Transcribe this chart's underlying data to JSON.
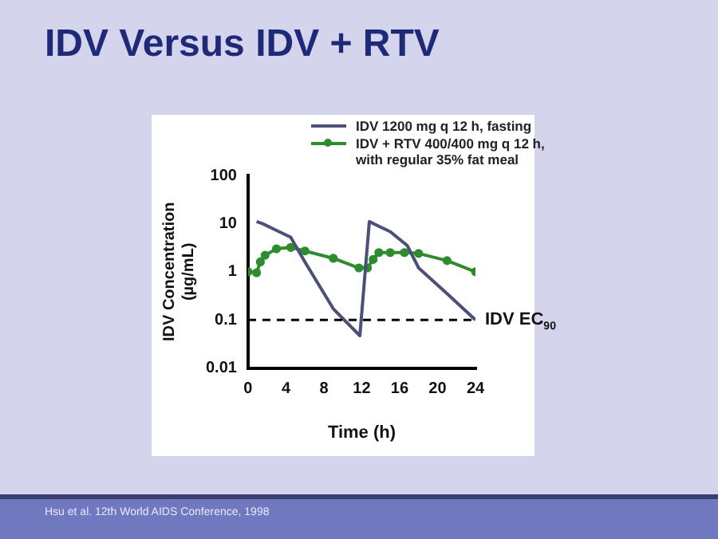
{
  "chart_data": {
    "type": "line",
    "title": "IDV Versus IDV + RTV",
    "xlabel": "Time (h)",
    "ylabel": "IDV Concentration\n(µg/mL)",
    "series": [
      {
        "name": "IDV 1200 mg q 12 h, fasting",
        "color": "#4a5078",
        "marker": "none",
        "x": [
          0.9,
          1.5,
          2.7,
          4.5,
          6,
          9,
          11.8,
          12.8,
          13.8,
          15,
          16.8,
          18,
          21,
          24
        ],
        "values": [
          11,
          10,
          7.7,
          5.2,
          1.6,
          0.17,
          0.047,
          11,
          8.8,
          6.8,
          3.5,
          1.2,
          0.35,
          0.1
        ]
      },
      {
        "name": "IDV + RTV 400/400 mg q 12 h,\nwith regular 35% fat meal",
        "color": "#2e8b2e",
        "marker": "circle",
        "x": [
          0,
          0.9,
          1.3,
          1.8,
          3,
          4.5,
          6,
          9,
          11.7,
          12.6,
          13.2,
          13.8,
          15,
          16.5,
          18,
          21,
          24
        ],
        "values": [
          1,
          0.95,
          1.6,
          2.2,
          3,
          3.2,
          2.7,
          1.9,
          1.2,
          1.2,
          1.8,
          2.5,
          2.5,
          2.5,
          2.4,
          1.7,
          1
        ]
      }
    ],
    "xlim": [
      0,
      24
    ],
    "xticks": [
      0,
      4,
      8,
      12,
      16,
      20,
      24
    ],
    "ylim": [
      0.01,
      100
    ],
    "yticks": [
      0.01,
      0.1,
      1,
      10,
      100
    ],
    "log": true,
    "grid": false,
    "legend": "top",
    "ref_lines": [
      {
        "axis": "y",
        "value": 0.1,
        "label": "IDV EC$_{90}$",
        "line_style": "dashed",
        "color": "#000000"
      }
    ],
    "annotations": [
      "Hsu et al. 12th World AIDS Conference, 1998"
    ]
  }
}
